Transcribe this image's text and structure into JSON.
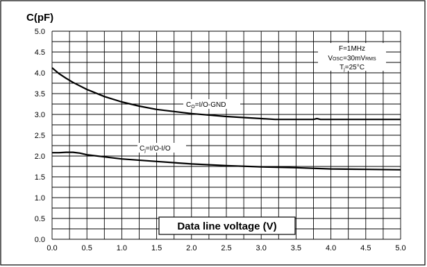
{
  "chart_data": {
    "type": "line",
    "ylabel": "C(pF)",
    "xlabel": "Data line voltage (V)",
    "xlim": [
      0,
      5
    ],
    "ylim": [
      0,
      5
    ],
    "grid": true,
    "x_ticks": [
      "0.0",
      "0.5",
      "1.0",
      "1.5",
      "2.0",
      "2.5",
      "3.0",
      "3.5",
      "4.0",
      "4.5",
      "5.0"
    ],
    "y_ticks": [
      "0.0",
      "0.5",
      "1.0",
      "1.5",
      "2.0",
      "2.5",
      "3.0",
      "3.5",
      "4.0",
      "4.5",
      "5.0"
    ],
    "conditions": {
      "freq": {
        "text": "F=1MHz"
      },
      "vosc": {
        "main": "V",
        "sub1": "OSC",
        "mid": "=30mV",
        "sub2": "RMS"
      },
      "tj": {
        "main": "T",
        "sub": "j",
        "rest": "=25°C"
      }
    },
    "series": [
      {
        "label": {
          "main": "C",
          "sub": "O",
          "rest": "=I/O-GND"
        },
        "x": [
          0.0,
          0.1,
          0.2,
          0.3,
          0.5,
          0.75,
          1.0,
          1.25,
          1.5,
          2.0,
          2.5,
          3.0,
          3.2,
          3.5,
          3.75,
          3.8,
          3.85,
          4.0,
          4.5,
          5.0
        ],
        "y": [
          4.12,
          3.98,
          3.87,
          3.77,
          3.6,
          3.43,
          3.3,
          3.2,
          3.12,
          3.02,
          2.95,
          2.9,
          2.88,
          2.88,
          2.88,
          2.9,
          2.88,
          2.88,
          2.88,
          2.88
        ]
      },
      {
        "label": {
          "main": "C",
          "sub": "j",
          "rest": "=I/O-I/O"
        },
        "x": [
          0.0,
          0.1,
          0.2,
          0.3,
          0.4,
          0.5,
          0.75,
          1.0,
          1.5,
          2.0,
          2.5,
          3.0,
          3.5,
          4.0,
          4.5,
          5.0
        ],
        "y": [
          2.08,
          2.08,
          2.09,
          2.09,
          2.07,
          2.03,
          1.98,
          1.93,
          1.87,
          1.81,
          1.77,
          1.74,
          1.72,
          1.69,
          1.68,
          1.67
        ]
      }
    ]
  }
}
